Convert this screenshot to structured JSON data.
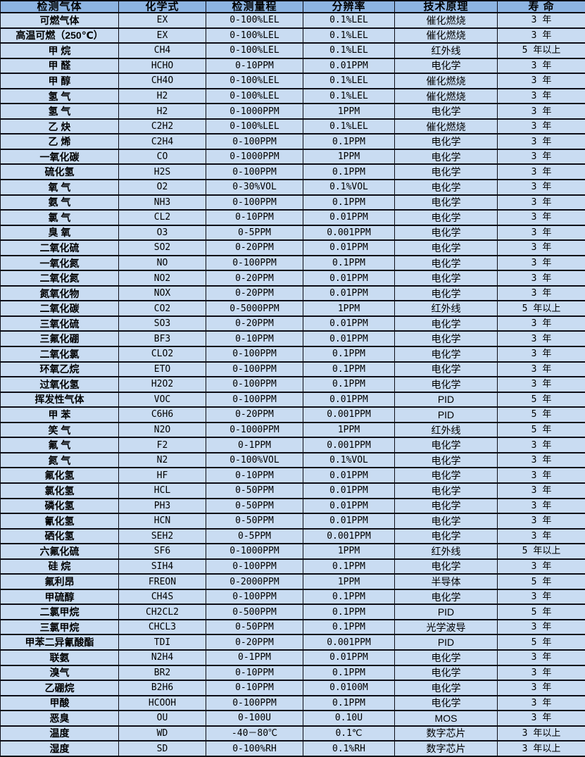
{
  "colors": {
    "header_bg": "#8db4e2",
    "row_bg": "#c9dcf2",
    "border": "#0d0d16",
    "text": "#000000"
  },
  "chart_data": {
    "type": "table",
    "title": "",
    "columns": [
      "检测气体",
      "化学式",
      "检测量程",
      "分辨率",
      "技术原理",
      "寿 命"
    ],
    "rows": [
      [
        "可燃气体",
        "EX",
        "0-100%LEL",
        "0.1%LEL",
        "催化燃烧",
        "3 年"
      ],
      [
        "高温可燃（250℃）",
        "EX",
        "0-100%LEL",
        "0.1%LEL",
        "催化燃烧",
        "3 年"
      ],
      [
        "甲 烷",
        "CH4",
        "0-100%LEL",
        "0.1%LEL",
        "红外线",
        "5 年以上"
      ],
      [
        "甲 醛",
        "HCHO",
        "0-10PPM",
        "0.01PPM",
        "电化学",
        "3 年"
      ],
      [
        "甲 醇",
        "CH4O",
        "0-100%LEL",
        "0.1%LEL",
        "催化燃烧",
        "3 年"
      ],
      [
        "氢 气",
        "H2",
        "0-100%LEL",
        "0.1%LEL",
        "催化燃烧",
        "3 年"
      ],
      [
        "氢 气",
        "H2",
        "0-1000PPM",
        "1PPM",
        "电化学",
        "3 年"
      ],
      [
        "乙 炔",
        "C2H2",
        "0-100%LEL",
        "0.1%LEL",
        "催化燃烧",
        "3 年"
      ],
      [
        "乙 烯",
        "C2H4",
        "0-100PPM",
        "0.1PPM",
        "电化学",
        "3 年"
      ],
      [
        "一氧化碳",
        "CO",
        "0-1000PPM",
        "1PPM",
        "电化学",
        "3 年"
      ],
      [
        "硫化氢",
        "H2S",
        "0-100PPM",
        "0.1PPM",
        "电化学",
        "3 年"
      ],
      [
        "氧 气",
        "O2",
        "0-30%VOL",
        "0.1%VOL",
        "电化学",
        "3 年"
      ],
      [
        "氨 气",
        "NH3",
        "0-100PPM",
        "0.1PPM",
        "电化学",
        "3 年"
      ],
      [
        "氯 气",
        "CL2",
        "0-10PPM",
        "0.01PPM",
        "电化学",
        "3 年"
      ],
      [
        "臭 氧",
        "O3",
        "0-5PPM",
        "0.001PPM",
        "电化学",
        "3 年"
      ],
      [
        "二氧化硫",
        "SO2",
        "0-20PPM",
        "0.01PPM",
        "电化学",
        "3 年"
      ],
      [
        "一氧化氮",
        "NO",
        "0-100PPM",
        "0.1PPM",
        "电化学",
        "3 年"
      ],
      [
        "二氧化氮",
        "NO2",
        "0-20PPM",
        "0.01PPM",
        "电化学",
        "3 年"
      ],
      [
        "氮氧化物",
        "NOX",
        "0-20PPM",
        "0.01PPM",
        "电化学",
        "3 年"
      ],
      [
        "二氧化碳",
        "CO2",
        "0-5000PPM",
        "1PPM",
        "红外线",
        "5 年以上"
      ],
      [
        "三氧化硫",
        "SO3",
        "0-20PPM",
        "0.01PPM",
        "电化学",
        "3 年"
      ],
      [
        "三氟化硼",
        "BF3",
        "0-10PPM",
        "0.01PPM",
        "电化学",
        "3 年"
      ],
      [
        "二氧化氯",
        "CLO2",
        "0-100PPM",
        "0.1PPM",
        "电化学",
        "3 年"
      ],
      [
        "环氧乙烷",
        "ETO",
        "0-100PPM",
        "0.1PPM",
        "电化学",
        "3 年"
      ],
      [
        "过氧化氢",
        "H2O2",
        "0-100PPM",
        "0.1PPM",
        "电化学",
        "3 年"
      ],
      [
        "挥发性气体",
        "VOC",
        "0-100PPM",
        "0.01PPM",
        "PID",
        "5 年"
      ],
      [
        "甲 苯",
        "C6H6",
        "0-20PPM",
        "0.001PPM",
        "PID",
        "5 年"
      ],
      [
        "笑 气",
        "N2O",
        "0-1000PPM",
        "1PPM",
        "红外线",
        "5 年"
      ],
      [
        "氟 气",
        "F2",
        "0-1PPM",
        "0.001PPM",
        "电化学",
        "3 年"
      ],
      [
        "氮 气",
        "N2",
        "0-100%VOL",
        "0.1%VOL",
        "电化学",
        "3 年"
      ],
      [
        "氟化氢",
        "HF",
        "0-10PPM",
        "0.01PPM",
        "电化学",
        "3 年"
      ],
      [
        "氯化氢",
        "HCL",
        "0-50PPM",
        "0.01PPM",
        "电化学",
        "3 年"
      ],
      [
        "磷化氢",
        "PH3",
        "0-50PPM",
        "0.01PPM",
        "电化学",
        "3 年"
      ],
      [
        "氰化氢",
        "HCN",
        "0-50PPM",
        "0.01PPM",
        "电化学",
        "3 年"
      ],
      [
        "硒化氢",
        "SEH2",
        "0-5PPM",
        "0.001PPM",
        "电化学",
        "3 年"
      ],
      [
        "六氟化硫",
        "SF6",
        "0-1000PPM",
        "1PPM",
        "红外线",
        "5 年以上"
      ],
      [
        "硅 烷",
        "SIH4",
        "0-100PPM",
        "0.1PPM",
        "电化学",
        "3 年"
      ],
      [
        "氟利昂",
        "FREON",
        "0-2000PPM",
        "1PPM",
        "半导体",
        "5 年"
      ],
      [
        "甲硫醇",
        "CH4S",
        "0-100PPM",
        "0.1PPM",
        "电化学",
        "3 年"
      ],
      [
        "二氯甲烷",
        "CH2CL2",
        "0-500PPM",
        "0.1PPM",
        "PID",
        "5 年"
      ],
      [
        "三氯甲烷",
        "CHCL3",
        "0-50PPM",
        "0.1PPM",
        "光学波导",
        "3 年"
      ],
      [
        "甲苯二异氰酸酯",
        "TDI",
        "0-20PPM",
        "0.001PPM",
        "PID",
        "5 年"
      ],
      [
        "联氨",
        "N2H4",
        "0-1PPM",
        "0.01PPM",
        "电化学",
        "3 年"
      ],
      [
        "溴气",
        "BR2",
        "0-10PPM",
        "0.1PPM",
        "电化学",
        "3 年"
      ],
      [
        "乙硼烷",
        "B2H6",
        "0-10PPM",
        "0.0100M",
        "电化学",
        "3 年"
      ],
      [
        "甲酸",
        "HCOOH",
        "0-100PPM",
        "0.1PPM",
        "电化学",
        "3 年"
      ],
      [
        "恶臭",
        "OU",
        "0-100U",
        "0.10U",
        "MOS",
        "3 年"
      ],
      [
        "温度",
        "WD",
        "-40－80℃",
        "0.1℃",
        "数字芯片",
        "3 年以上"
      ],
      [
        "湿度",
        "SD",
        "0-100%RH",
        "0.1%RH",
        "数字芯片",
        "3 年以上"
      ]
    ]
  }
}
